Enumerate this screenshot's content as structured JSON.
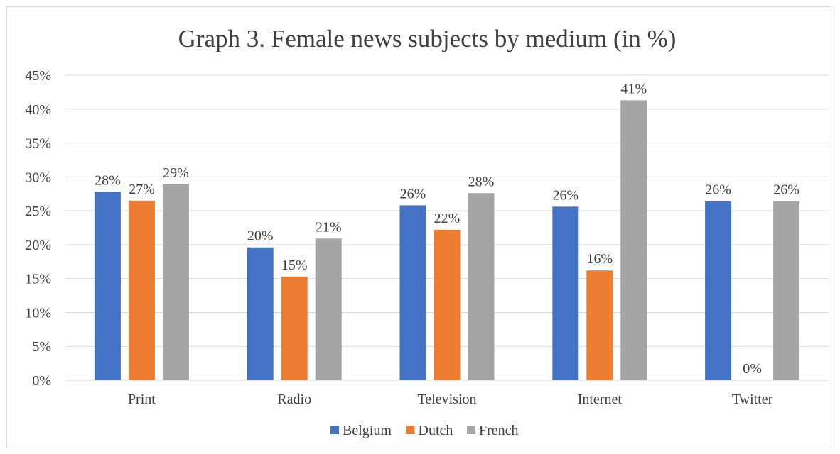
{
  "chart_data": {
    "type": "bar",
    "title": "Graph 3. Female news subjects by medium (in %)",
    "categories": [
      "Print",
      "Radio",
      "Television",
      "Internet",
      "Twitter"
    ],
    "series": [
      {
        "name": "Belgium",
        "color": "#4472c4",
        "values": [
          27.8,
          19.6,
          25.8,
          25.6,
          26.4
        ],
        "labels": [
          "28%",
          "20%",
          "26%",
          "26%",
          "26%"
        ]
      },
      {
        "name": "Dutch",
        "color": "#ed7d31",
        "values": [
          26.5,
          15.3,
          22.2,
          16.2,
          0
        ],
        "labels": [
          "27%",
          "15%",
          "22%",
          "16%",
          "0%"
        ]
      },
      {
        "name": "French",
        "color": "#a5a5a5",
        "values": [
          28.9,
          20.9,
          27.6,
          41.3,
          26.4
        ],
        "labels": [
          "29%",
          "21%",
          "28%",
          "41%",
          "26%"
        ]
      }
    ],
    "y_ticks": [
      "0%",
      "5%",
      "10%",
      "15%",
      "20%",
      "25%",
      "30%",
      "35%",
      "40%",
      "45%"
    ],
    "ylim": [
      0,
      45
    ],
    "grid": true,
    "legend": "bottom"
  }
}
